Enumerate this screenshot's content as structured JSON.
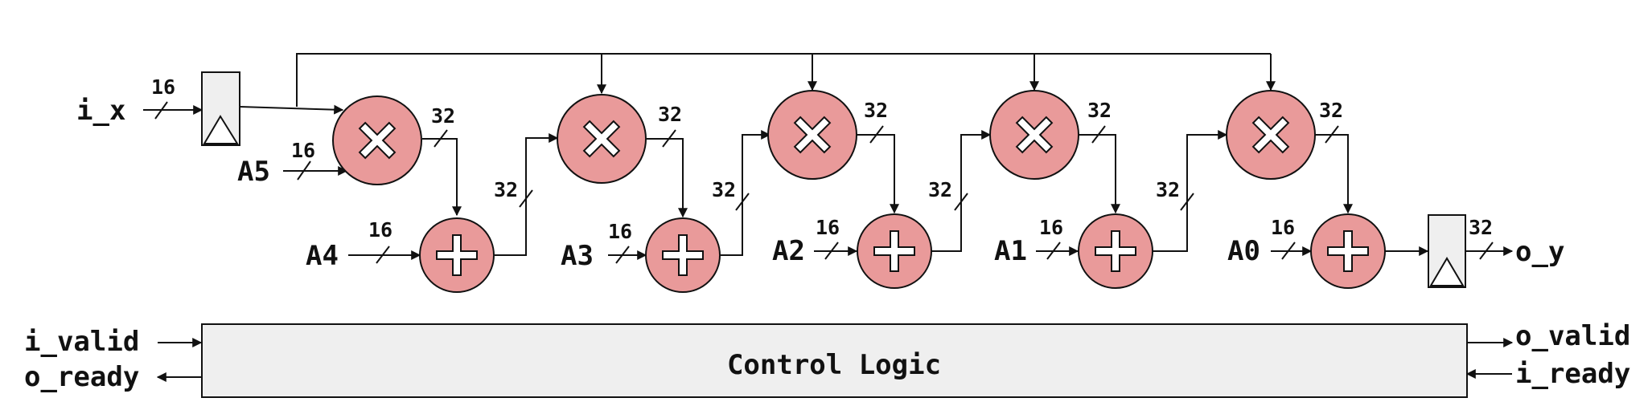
{
  "inputs": {
    "x": "i_x",
    "coefficients": [
      "A5",
      "A4",
      "A3",
      "A2",
      "A1",
      "A0"
    ],
    "valid": "i_valid",
    "ready": "i_ready"
  },
  "outputs": {
    "y": "o_y",
    "valid": "o_valid",
    "ready": "o_ready"
  },
  "bit_widths": {
    "x_in": "16",
    "coeff_in": "16",
    "mult_out": "32",
    "add_out": "32",
    "y_out": "32"
  },
  "control_logic_label": "Control Logic",
  "colors": {
    "operator_fill": "#e99a9a",
    "register_fill": "#efefef",
    "control_fill": "#efefef",
    "stroke": "#111111"
  },
  "icons": {
    "multiplier": "multiply-icon",
    "adder": "plus-icon",
    "register": "register-clock-icon"
  }
}
